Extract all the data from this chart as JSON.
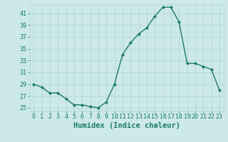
{
  "x": [
    0,
    1,
    2,
    3,
    4,
    5,
    6,
    7,
    8,
    9,
    10,
    11,
    12,
    13,
    14,
    15,
    16,
    17,
    18,
    19,
    20,
    21,
    22,
    23
  ],
  "y": [
    29,
    28.5,
    27.5,
    27.5,
    26.5,
    25.5,
    25.5,
    25.2,
    25.0,
    26.0,
    29.0,
    34.0,
    36.0,
    37.5,
    38.5,
    40.5,
    42.0,
    42.0,
    39.5,
    32.5,
    32.5,
    32.0,
    31.5,
    28.0
  ],
  "xlabel": "Humidex (Indice chaleur)",
  "ylim": [
    24.5,
    42.5
  ],
  "yticks": [
    25,
    27,
    29,
    31,
    33,
    35,
    37,
    39,
    41
  ],
  "xlim": [
    -0.5,
    23.5
  ],
  "xticks": [
    0,
    1,
    2,
    3,
    4,
    5,
    6,
    7,
    8,
    9,
    10,
    11,
    12,
    13,
    14,
    15,
    16,
    17,
    18,
    19,
    20,
    21,
    22,
    23
  ],
  "xtick_labels": [
    "0",
    "1",
    "2",
    "3",
    "4",
    "5",
    "6",
    "7",
    "8",
    "9",
    "10",
    "11",
    "12",
    "13",
    "14",
    "15",
    "16",
    "17",
    "18",
    "19",
    "20",
    "21",
    "22",
    "23"
  ],
  "line_color": "#1a7a6e",
  "marker": "D",
  "marker_size": 2.0,
  "line_width": 1.0,
  "bg_color": "#cce9e7",
  "grid_color": "#aed4d2",
  "xlabel_fontsize": 7.5,
  "tick_fontsize": 6.0,
  "tick_color": "#1a7a6e"
}
